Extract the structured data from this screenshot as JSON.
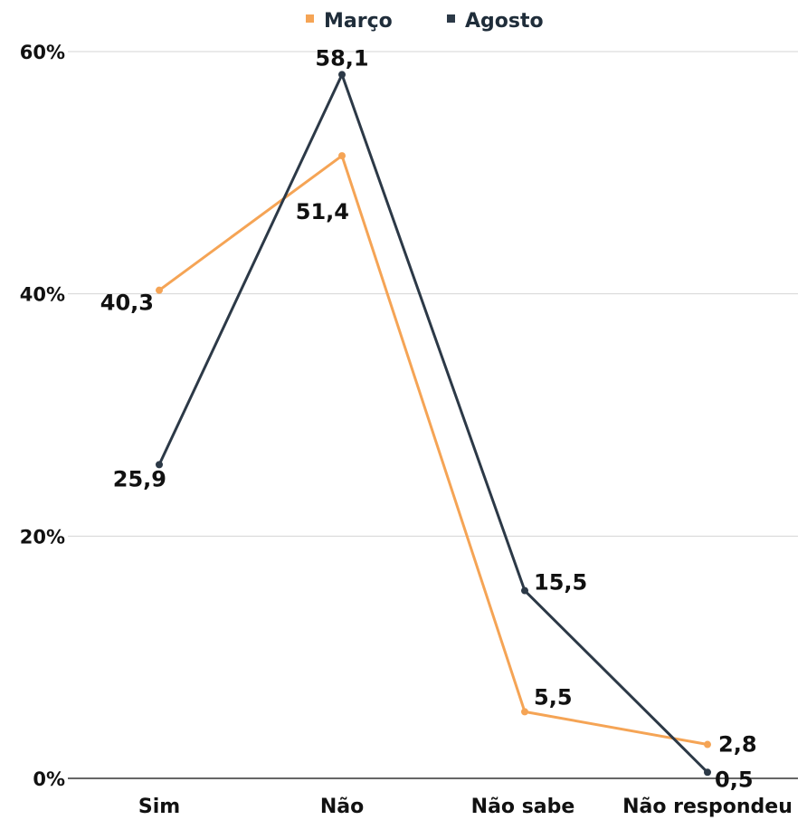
{
  "chart_data": {
    "type": "line",
    "categories": [
      "Sim",
      "Não",
      "Não sabe",
      "Não respondeu"
    ],
    "series": [
      {
        "name": "Março",
        "color": "#f5a455",
        "values": [
          40.3,
          51.4,
          5.5,
          2.8
        ],
        "value_labels": [
          "40,3",
          "51,4",
          "5,5",
          "2,8"
        ]
      },
      {
        "name": "Agosto",
        "color": "#2c3947",
        "values": [
          25.9,
          58.1,
          15.5,
          0.5
        ],
        "value_labels": [
          "25,9",
          "58,1",
          "15,5",
          "0,5"
        ]
      }
    ],
    "ylim": [
      0,
      60
    ],
    "yticks": [
      0,
      20,
      40,
      60
    ],
    "ytick_labels": [
      "0%",
      "20%",
      "40%",
      "60%"
    ],
    "grid": true,
    "legend": "top-center"
  }
}
